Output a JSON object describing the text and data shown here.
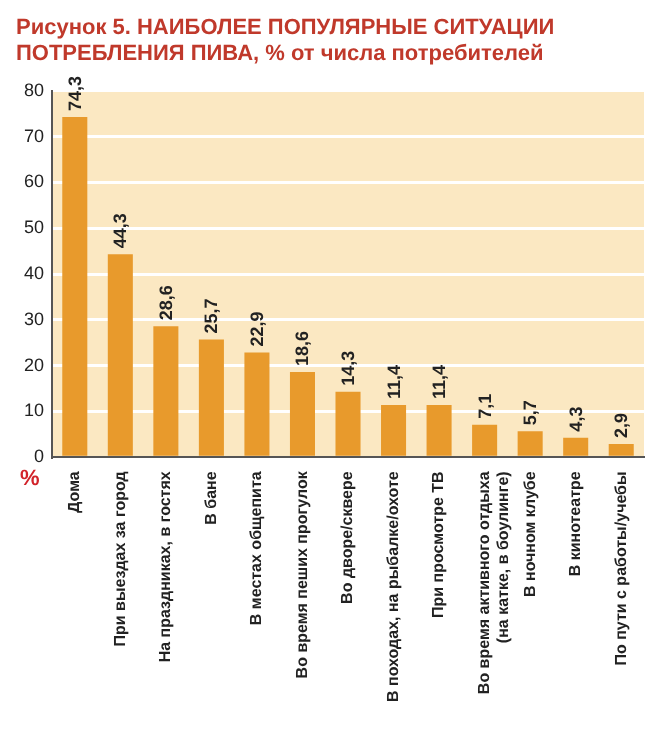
{
  "chart_data": {
    "type": "bar",
    "title": "Рисунок 5. НАИБОЛЕЕ ПОПУЛЯРНЫЕ СИТУАЦИИ ПОТРЕБЛЕНИЯ ПИВА, % от числа потребителей",
    "ylabel": "%",
    "categories": [
      "Дома",
      "При выездах за город",
      "На праздниках, в гостях",
      "В бане",
      "В местах общепита",
      "Во время пеших прогулок",
      "Во дворе/сквере",
      "В походах, на рыбалке/охоте",
      "При просмотре ТВ",
      "Во время активного отдыха\n(на катке, в боулинге)",
      "В ночном клубе",
      "В кинотеатре",
      "По пути с работы/учебы"
    ],
    "values": [
      74.3,
      44.3,
      28.6,
      25.7,
      22.9,
      18.6,
      14.3,
      11.4,
      11.4,
      7.1,
      5.7,
      4.3,
      2.9
    ],
    "value_labels": [
      "74,3",
      "44,3",
      "28,6",
      "25,7",
      "22,9",
      "18,6",
      "14,3",
      "11,4",
      "11,4",
      "7,1",
      "5,7",
      "4,3",
      "2,9"
    ],
    "color": "#e89a2c",
    "ylim": [
      0,
      80
    ],
    "yticks": [
      0,
      10,
      20,
      30,
      40,
      50,
      60,
      70,
      80
    ],
    "grid": "y",
    "legend": false
  }
}
